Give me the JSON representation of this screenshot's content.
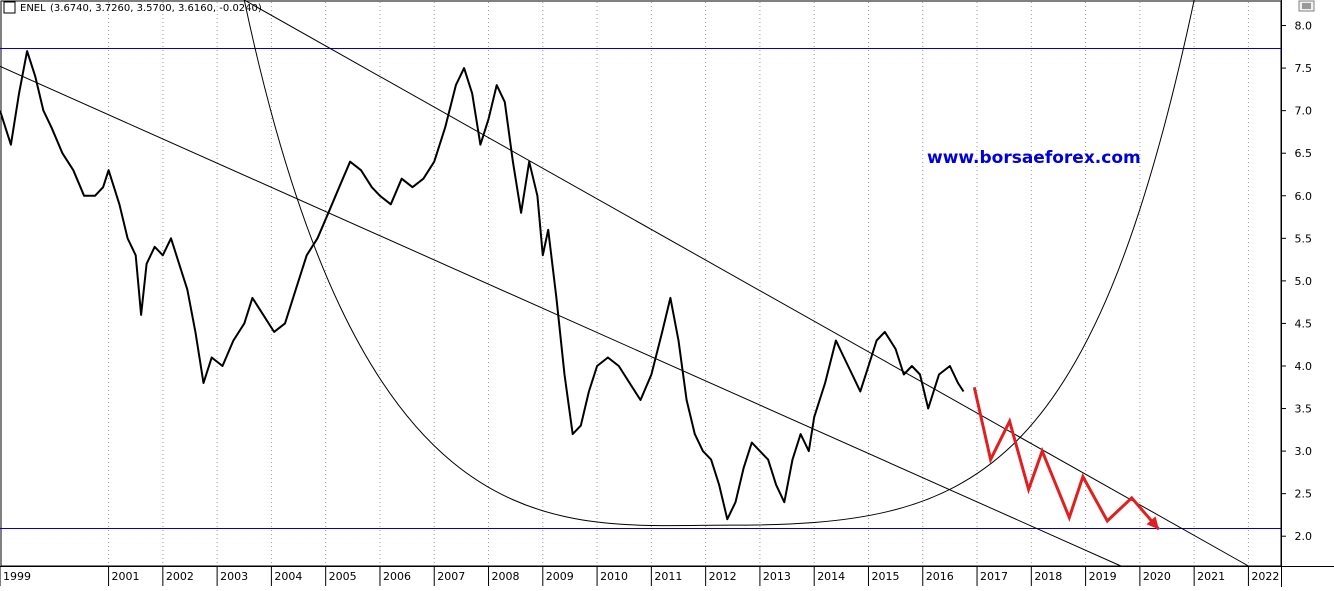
{
  "header": {
    "ticker": "ENEL",
    "ohlc": "(3.6740, 3.7260, 3.5700, 3.6160, -0.0240)"
  },
  "watermark": "www.borsaeforex.com",
  "colors": {
    "price": "#000000",
    "hline": "#0000cc",
    "forecast": "#e02020",
    "grid": "#9a9a9a",
    "watermark": "#0000dd"
  },
  "icons": [
    "menu-button-icon",
    "chart-options-icon"
  ],
  "chart_data": {
    "type": "line",
    "ylim": [
      1.65,
      8.3
    ],
    "xlim": [
      1999.0,
      2022.6
    ],
    "x_ticks": [
      "1999",
      "2001",
      "2002",
      "2003",
      "2004",
      "2005",
      "2006",
      "2007",
      "2008",
      "2009",
      "2010",
      "2011",
      "2012",
      "2013",
      "2014",
      "2015",
      "2016",
      "2017",
      "2018",
      "2019",
      "2020",
      "2021",
      "2022"
    ],
    "y_ticks": [
      "8.0",
      "7.5",
      "7.0",
      "6.5",
      "6.0",
      "5.5",
      "5.0",
      "4.5",
      "4.0",
      "3.5",
      "3.0",
      "2.5",
      "2.0"
    ],
    "series": [
      {
        "key": "price",
        "points": [
          [
            1999.0,
            7.0
          ],
          [
            1999.2,
            6.6
          ],
          [
            1999.35,
            7.2
          ],
          [
            1999.5,
            7.7
          ],
          [
            1999.65,
            7.4
          ],
          [
            1999.8,
            7.0
          ],
          [
            1999.95,
            6.8
          ],
          [
            2000.15,
            6.5
          ],
          [
            2000.35,
            6.3
          ],
          [
            2000.55,
            6.0
          ],
          [
            2000.75,
            6.0
          ],
          [
            2000.9,
            6.1
          ],
          [
            2001.0,
            6.3
          ],
          [
            2001.2,
            5.9
          ],
          [
            2001.35,
            5.5
          ],
          [
            2001.5,
            5.3
          ],
          [
            2001.6,
            4.6
          ],
          [
            2001.7,
            5.2
          ],
          [
            2001.85,
            5.4
          ],
          [
            2002.0,
            5.3
          ],
          [
            2002.15,
            5.5
          ],
          [
            2002.3,
            5.2
          ],
          [
            2002.45,
            4.9
          ],
          [
            2002.6,
            4.4
          ],
          [
            2002.75,
            3.8
          ],
          [
            2002.9,
            4.1
          ],
          [
            2003.1,
            4.0
          ],
          [
            2003.3,
            4.3
          ],
          [
            2003.5,
            4.5
          ],
          [
            2003.65,
            4.8
          ],
          [
            2003.85,
            4.6
          ],
          [
            2004.05,
            4.4
          ],
          [
            2004.25,
            4.5
          ],
          [
            2004.45,
            4.9
          ],
          [
            2004.65,
            5.3
          ],
          [
            2004.85,
            5.5
          ],
          [
            2005.05,
            5.8
          ],
          [
            2005.25,
            6.1
          ],
          [
            2005.45,
            6.4
          ],
          [
            2005.65,
            6.3
          ],
          [
            2005.85,
            6.1
          ],
          [
            2006.0,
            6.0
          ],
          [
            2006.2,
            5.9
          ],
          [
            2006.4,
            6.2
          ],
          [
            2006.6,
            6.1
          ],
          [
            2006.8,
            6.2
          ],
          [
            2007.0,
            6.4
          ],
          [
            2007.2,
            6.8
          ],
          [
            2007.4,
            7.3
          ],
          [
            2007.55,
            7.5
          ],
          [
            2007.7,
            7.2
          ],
          [
            2007.85,
            6.6
          ],
          [
            2008.0,
            6.9
          ],
          [
            2008.15,
            7.3
          ],
          [
            2008.3,
            7.1
          ],
          [
            2008.45,
            6.4
          ],
          [
            2008.6,
            5.8
          ],
          [
            2008.75,
            6.4
          ],
          [
            2008.9,
            6.0
          ],
          [
            2009.0,
            5.3
          ],
          [
            2009.1,
            5.6
          ],
          [
            2009.25,
            4.8
          ],
          [
            2009.4,
            3.9
          ],
          [
            2009.55,
            3.2
          ],
          [
            2009.7,
            3.3
          ],
          [
            2009.85,
            3.7
          ],
          [
            2010.0,
            4.0
          ],
          [
            2010.2,
            4.1
          ],
          [
            2010.4,
            4.0
          ],
          [
            2010.6,
            3.8
          ],
          [
            2010.8,
            3.6
          ],
          [
            2011.0,
            3.9
          ],
          [
            2011.2,
            4.4
          ],
          [
            2011.35,
            4.8
          ],
          [
            2011.5,
            4.3
          ],
          [
            2011.65,
            3.6
          ],
          [
            2011.8,
            3.2
          ],
          [
            2011.95,
            3.0
          ],
          [
            2012.1,
            2.9
          ],
          [
            2012.25,
            2.6
          ],
          [
            2012.4,
            2.2
          ],
          [
            2012.55,
            2.4
          ],
          [
            2012.7,
            2.8
          ],
          [
            2012.85,
            3.1
          ],
          [
            2013.0,
            3.0
          ],
          [
            2013.15,
            2.9
          ],
          [
            2013.3,
            2.6
          ],
          [
            2013.45,
            2.4
          ],
          [
            2013.6,
            2.9
          ],
          [
            2013.75,
            3.2
          ],
          [
            2013.9,
            3.0
          ],
          [
            2014.0,
            3.4
          ],
          [
            2014.2,
            3.8
          ],
          [
            2014.4,
            4.3
          ],
          [
            2014.55,
            4.1
          ],
          [
            2014.7,
            3.9
          ],
          [
            2014.85,
            3.7
          ],
          [
            2015.0,
            4.0
          ],
          [
            2015.15,
            4.3
          ],
          [
            2015.3,
            4.4
          ],
          [
            2015.5,
            4.2
          ],
          [
            2015.65,
            3.9
          ],
          [
            2015.8,
            4.0
          ],
          [
            2015.95,
            3.9
          ],
          [
            2016.1,
            3.5
          ],
          [
            2016.3,
            3.9
          ],
          [
            2016.5,
            4.0
          ],
          [
            2016.65,
            3.8
          ],
          [
            2016.75,
            3.7
          ]
        ]
      },
      {
        "key": "forecast",
        "points": [
          [
            2016.95,
            3.75
          ],
          [
            2017.25,
            2.9
          ],
          [
            2017.6,
            3.35
          ],
          [
            2017.95,
            2.55
          ],
          [
            2018.2,
            3.0
          ],
          [
            2018.7,
            2.22
          ],
          [
            2018.95,
            2.7
          ],
          [
            2019.4,
            2.18
          ],
          [
            2019.85,
            2.45
          ],
          [
            2020.35,
            2.08
          ]
        ]
      }
    ],
    "horizontal_lines": [
      7.73,
      2.09
    ],
    "trend_lines": [
      [
        [
          1999.0,
          7.52
        ],
        [
          2019.65,
          1.65
        ]
      ],
      [
        [
          2003.5,
          8.3
        ],
        [
          2022.0,
          1.65
        ]
      ]
    ],
    "arc": {
      "left_top": [
        2003.5,
        8.3
      ],
      "bottom": [
        2012.45,
        2.13
      ],
      "right_top": [
        2021.0,
        8.3
      ]
    }
  }
}
